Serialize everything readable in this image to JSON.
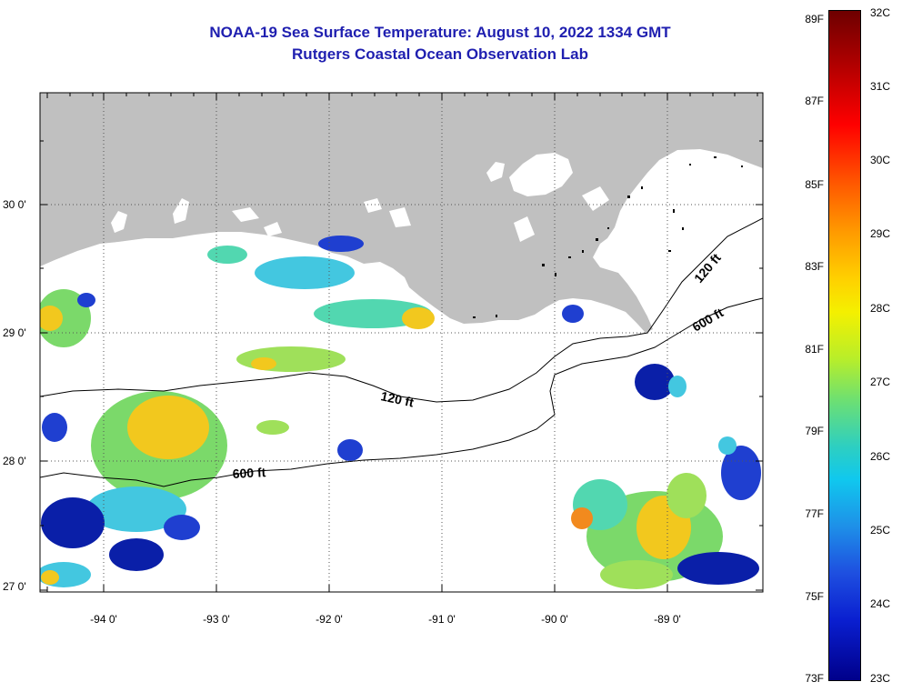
{
  "header": {
    "title": "NOAA-19 Sea Surface Temperature:  August 10, 2022 1334 GMT",
    "subtitle": "Rutgers Coastal Ocean Observation Lab"
  },
  "map": {
    "lat_labels": [
      "30 0'",
      "29 0'",
      "28 0'",
      "27 0'"
    ],
    "lon_labels": [
      "-94 0'",
      "-93 0'",
      "-92 0'",
      "-91 0'",
      "-90 0'",
      "-89 0'"
    ],
    "contours": {
      "inner": "120 ft",
      "outer": "600 ft"
    },
    "colors": {
      "land": "#c0c0c0",
      "ocean_missing": "#ffffff"
    }
  },
  "colorbar": {
    "fahrenheit": [
      "89F",
      "87F",
      "85F",
      "83F",
      "81F",
      "79F",
      "77F",
      "75F",
      "73F"
    ],
    "celsius": [
      "32C",
      "31C",
      "30C",
      "29C",
      "28C",
      "27C",
      "26C",
      "25C",
      "24C",
      "23C"
    ]
  }
}
